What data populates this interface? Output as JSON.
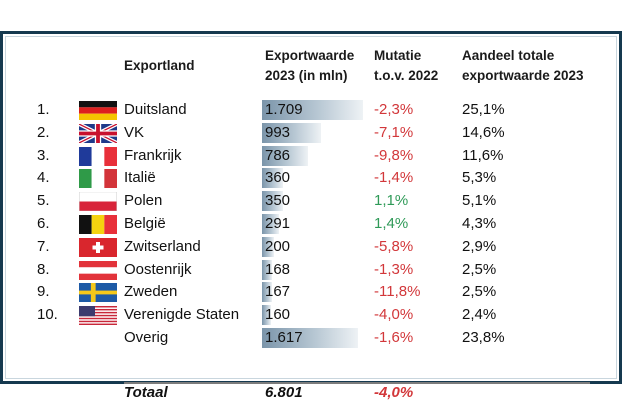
{
  "headers": {
    "country": "Exportland",
    "value_line1": "Exportwaarde",
    "value_line2": "2023 (in mln)",
    "change_line1": "Mutatie",
    "change_line2": "t.o.v. 2022",
    "share_line1": "Aandeel totale",
    "share_line2": "exportwaarde 2023"
  },
  "rows": [
    {
      "rank": "1.",
      "flag": "germany-flag-icon",
      "country": "Duitsland",
      "value": "1.709",
      "value_num": 1709,
      "change": "-2,3%",
      "change_sign": "neg",
      "share": "25,1%"
    },
    {
      "rank": "2.",
      "flag": "uk-flag-icon",
      "country": "VK",
      "value": "993",
      "value_num": 993,
      "change": "-7,1%",
      "change_sign": "neg",
      "share": "14,6%"
    },
    {
      "rank": "3.",
      "flag": "france-flag-icon",
      "country": "Frankrijk",
      "value": "786",
      "value_num": 786,
      "change": "-9,8%",
      "change_sign": "neg",
      "share": "11,6%"
    },
    {
      "rank": "4.",
      "flag": "italy-flag-icon",
      "country": "Italië",
      "value": "360",
      "value_num": 360,
      "change": "-1,4%",
      "change_sign": "neg",
      "share": "5,3%"
    },
    {
      "rank": "5.",
      "flag": "poland-flag-icon",
      "country": "Polen",
      "value": "350",
      "value_num": 350,
      "change": "1,1%",
      "change_sign": "pos",
      "share": "5,1%"
    },
    {
      "rank": "6.",
      "flag": "belgium-flag-icon",
      "country": "België",
      "value": "291",
      "value_num": 291,
      "change": "1,4%",
      "change_sign": "pos",
      "share": "4,3%"
    },
    {
      "rank": "7.",
      "flag": "switzerland-flag-icon",
      "country": "Zwitserland",
      "value": "200",
      "value_num": 200,
      "change": "-5,8%",
      "change_sign": "neg",
      "share": "2,9%"
    },
    {
      "rank": "8.",
      "flag": "austria-flag-icon",
      "country": "Oostenrijk",
      "value": "168",
      "value_num": 168,
      "change": "-1,3%",
      "change_sign": "neg",
      "share": "2,5%"
    },
    {
      "rank": "9.",
      "flag": "sweden-flag-icon",
      "country": "Zweden",
      "value": "167",
      "value_num": 167,
      "change": "-11,8%",
      "change_sign": "neg",
      "share": "2,5%"
    },
    {
      "rank": "10.",
      "flag": "usa-flag-icon",
      "country": "Verenigde Staten",
      "value": "160",
      "value_num": 160,
      "change": "-4,0%",
      "change_sign": "neg",
      "share": "2,4%"
    },
    {
      "rank": "",
      "flag": "",
      "country": "Overig",
      "value": "1.617",
      "value_num": 1617,
      "change": "-1,6%",
      "change_sign": "neg",
      "share": "23,8%"
    }
  ],
  "total": {
    "label": "Totaal",
    "value": "6.801",
    "change": "-4,0%"
  },
  "colors": {
    "negative": "#d2373a",
    "positive": "#2f9a58",
    "frame": "#15394f"
  },
  "bar_max": 1709
}
